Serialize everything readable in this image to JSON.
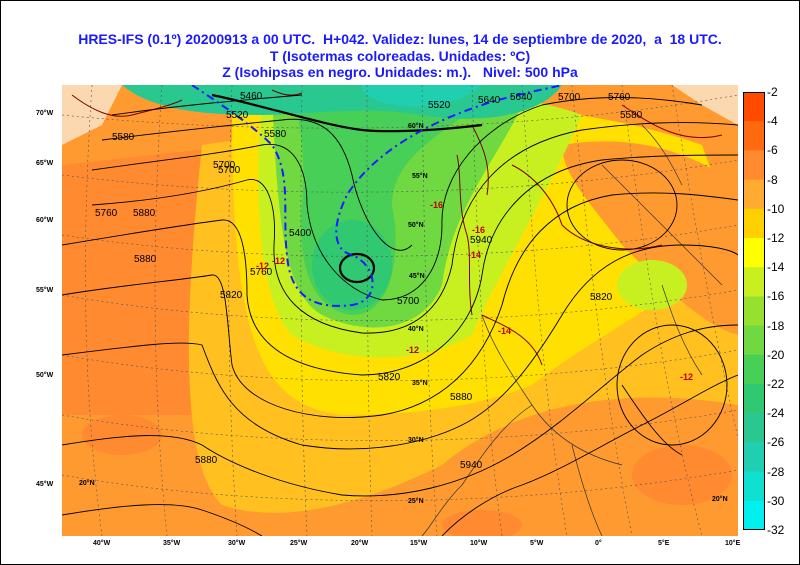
{
  "title": {
    "line1": "HRES-IFS (0.1º) 20200913 a 00 UTC.  H+042. Validez: lunes, 14 de septiembre de 2020,  a  18 UTC.",
    "line2": "T (Isotermas coloreadas. Unidades: ºC)",
    "line3": "Z (Isohipsas en negro. Unidades: m.).   Nivel: 500 hPa"
  },
  "colorbar": {
    "labels": [
      "-2",
      "-4",
      "-6",
      "-8",
      "-10",
      "-12",
      "-14",
      "-16",
      "-18",
      "-20",
      "-22",
      "-24",
      "-26",
      "-28",
      "-30",
      "-32"
    ],
    "colors": [
      "#ff4a00",
      "#ff6a10",
      "#ff8a30",
      "#ffaa30",
      "#ffd000",
      "#ffff00",
      "#c8f020",
      "#98e030",
      "#70d840",
      "#48cf58",
      "#30c870",
      "#28c890",
      "#20cfb0",
      "#10e0d0",
      "#00f0f0"
    ]
  },
  "longitude_labels": [
    "40°W",
    "35°W",
    "30°W",
    "25°W",
    "20°W",
    "15°W",
    "10°W",
    "5°W",
    "0°",
    "5°E",
    "10°E"
  ],
  "left_labels": [
    "70°W",
    "65°W",
    "60°W",
    "55°W",
    "50°W",
    "45°W"
  ],
  "lat_labels": [
    "60°N",
    "55°N",
    "50°N",
    "45°N",
    "40°N",
    "35°N",
    "30°N",
    "25°N",
    "20°N",
    "20°N"
  ],
  "contour_labels": [
    "5460",
    "5520",
    "5580",
    "5640",
    "5700",
    "5760",
    "5820",
    "5880",
    "5940",
    "5400",
    "5580",
    "5520",
    "5700",
    "5820",
    "5880",
    "5580",
    "5640",
    "5700",
    "5760",
    "5820",
    "5880",
    "5940",
    "5880",
    "5700",
    "5760"
  ],
  "isotherm_labels": [
    "-12",
    "-14",
    "-12",
    "-16",
    "-14",
    "-12",
    "-12",
    "-16"
  ]
}
